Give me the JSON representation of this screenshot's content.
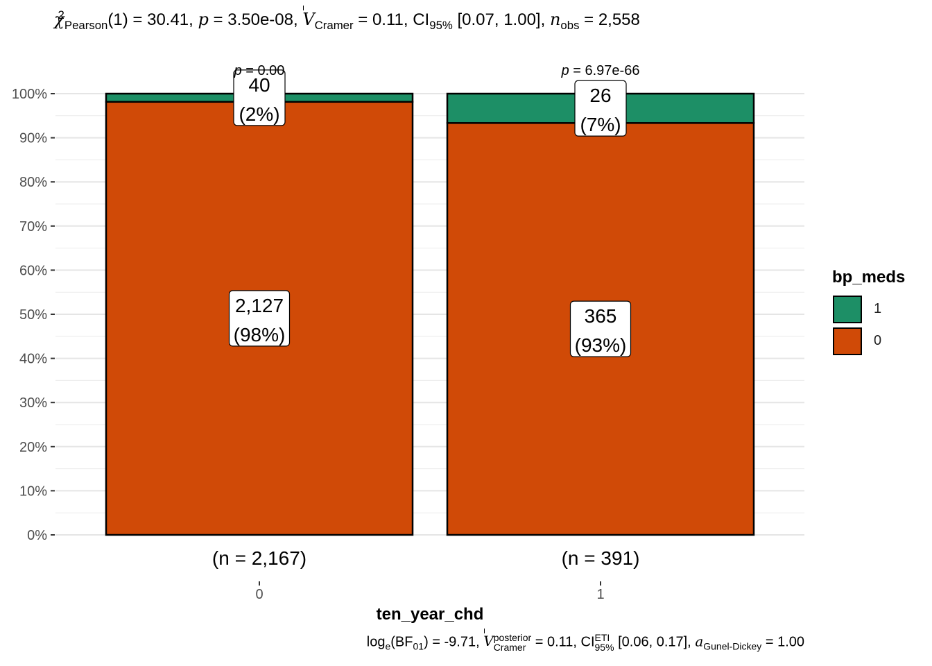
{
  "chart_data": {
    "type": "bar",
    "stacked": true,
    "subtitle": {
      "chi": "χ",
      "chi_sup": "2",
      "chi_sub": "Pearson",
      "df": "(1) = 30.41,",
      "p_sym": "p",
      "p_val": " = 3.50e-08,",
      "v_sym": "V",
      "v_sub": "Cramer",
      "v_val": " = 0.11, CI",
      "ci_sub": "95%",
      "ci_val": " [0.07, 1.00],",
      "n_sym": "n",
      "n_sub": "obs",
      "n_val": " = 2,558"
    },
    "caption": {
      "log": "log",
      "log_sub": "e",
      "bf": "(BF",
      "bf_sub": "01",
      "bf_val": ") = -9.71,",
      "v_sym": "V",
      "v_sup": "posterior",
      "v_sub": "Cramer",
      "v_val": " = 0.11, CI",
      "ci_sup": "ETI",
      "ci_sub": "95%",
      "ci_val": " [0.06, 0.17],",
      "a_sym": "a",
      "a_sub": "Gunel-Dickey",
      "a_val": " = 1.00"
    },
    "xlabel": "ten_year_chd",
    "ylabel": "",
    "ylim": [
      0,
      100
    ],
    "y_ticks": [
      0,
      10,
      20,
      30,
      40,
      50,
      60,
      70,
      80,
      90,
      100
    ],
    "y_tick_labels": [
      "0%",
      "10%",
      "20%",
      "30%",
      "40%",
      "50%",
      "60%",
      "70%",
      "80%",
      "90%",
      "100%"
    ],
    "categories": [
      "0",
      "1"
    ],
    "n_labels": [
      "(n = 2,167)",
      "(n = 391)"
    ],
    "p_prefix": "p",
    "p_labels": [
      " = 0.00",
      " = 6.97e-66"
    ],
    "series": [
      {
        "name": "0",
        "color": "#D04A07",
        "percent": [
          98.15,
          93.35
        ],
        "count_labels": [
          "2,127",
          "365"
        ],
        "pct_labels": [
          "(98%)",
          "(93%)"
        ]
      },
      {
        "name": "1",
        "color": "#1D8F66",
        "percent": [
          1.85,
          6.65
        ],
        "count_labels": [
          "40",
          "26"
        ],
        "pct_labels": [
          "(2%)",
          "(7%)"
        ]
      }
    ],
    "legend": {
      "title": "bp_meds",
      "items": [
        {
          "label": "1",
          "color": "#1D8F66"
        },
        {
          "label": "0",
          "color": "#D04A07"
        }
      ],
      "position": "right"
    }
  }
}
